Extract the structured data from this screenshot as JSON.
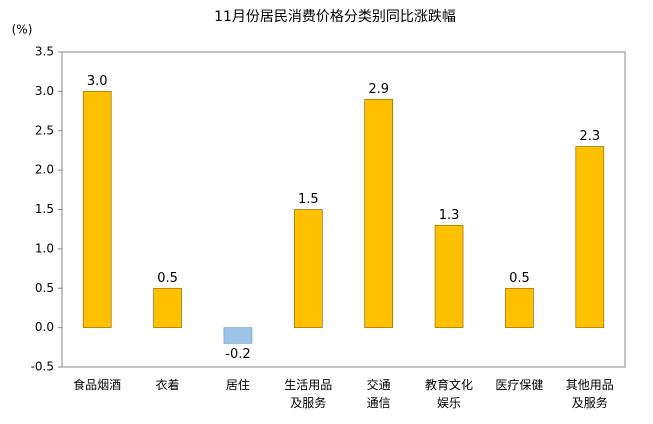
{
  "chart_data": {
    "type": "bar",
    "title": "11月份居民消费价格分类别同比涨跌幅",
    "y_unit": "(%)",
    "categories": [
      "食品烟酒",
      "衣着",
      "居住",
      "生活用品\n及服务",
      "交通\n通信",
      "教育文化\n娱乐",
      "医疗保健",
      "其他用品\n及服务"
    ],
    "values": [
      3.0,
      0.5,
      -0.2,
      1.5,
      2.9,
      1.3,
      0.5,
      2.3
    ],
    "value_labels": [
      "3.0",
      "0.5",
      "-0.2",
      "1.5",
      "2.9",
      "1.3",
      "0.5",
      "2.3"
    ],
    "color": "#FFC000",
    "negative_color": "#9DC3E6",
    "ylim": [
      -0.5,
      3.5
    ],
    "yticks": [
      -0.5,
      {
        "value": 0,
        "label": "0.0"
      },
      0.5,
      {
        "value": 1,
        "label": "1.0"
      },
      1.5,
      {
        "value": 2,
        "label": "2.0"
      },
      2.5,
      {
        "value": 3,
        "label": "3.0"
      },
      3.5
    ],
    "grid": false
  }
}
